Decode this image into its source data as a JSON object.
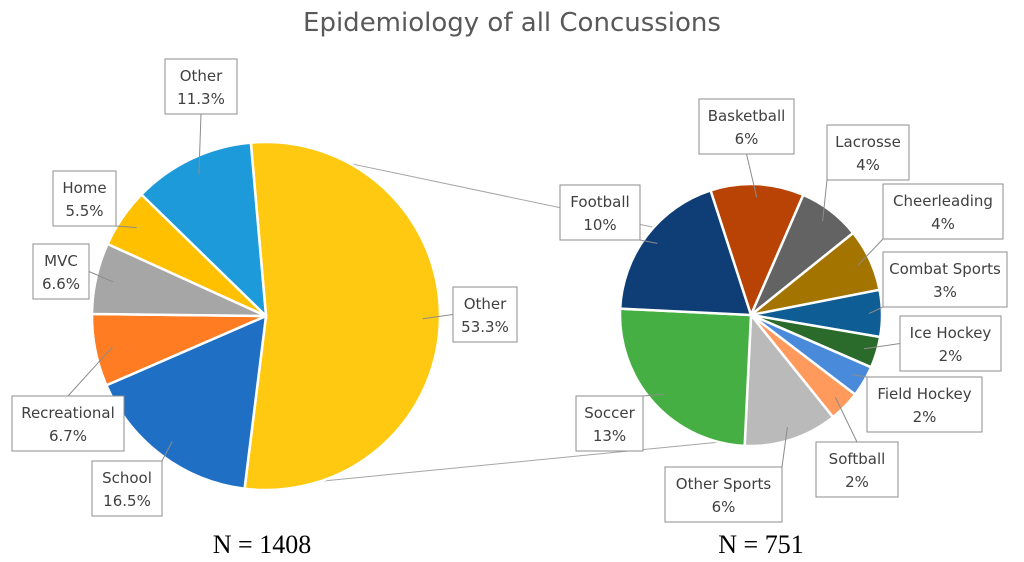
{
  "chart_data": [
    {
      "type": "pie",
      "title": "Epidemiology of all Concussions",
      "n_label": "N = 1408",
      "slices": [
        {
          "label": "Other",
          "value": 53.3,
          "value_label": "53.3%",
          "color": "#FFC811"
        },
        {
          "label": "School",
          "value": 16.5,
          "value_label": "16.5%",
          "color": "#1F6FC5"
        },
        {
          "label": "Recreational",
          "value": 6.7,
          "value_label": "6.7%",
          "color": "#FF7C22"
        },
        {
          "label": "MVC",
          "value": 6.6,
          "value_label": "6.6%",
          "color": "#A6A6A6"
        },
        {
          "label": "Home",
          "value": 5.5,
          "value_label": "5.5%",
          "color": "#FFC000"
        },
        {
          "label": "Other",
          "value": 11.3,
          "value_label": "11.3%",
          "color": "#1C9AD9"
        }
      ]
    },
    {
      "type": "pie",
      "n_label": "N = 751",
      "slices": [
        {
          "label": "Basketball",
          "value": 6,
          "value_label": "6%",
          "color": "#B84304"
        },
        {
          "label": "Lacrosse",
          "value": 4,
          "value_label": "4%",
          "color": "#636363"
        },
        {
          "label": "Cheerleading",
          "value": 4,
          "value_label": "4%",
          "color": "#A47400"
        },
        {
          "label": "Combat Sports",
          "value": 3,
          "value_label": "3%",
          "color": "#0E5D94"
        },
        {
          "label": "Ice Hockey",
          "value": 2,
          "value_label": "2%",
          "color": "#2A6A2B"
        },
        {
          "label": "Field Hockey",
          "value": 2,
          "value_label": "2%",
          "color": "#4A8ADB"
        },
        {
          "label": "Softball",
          "value": 2,
          "value_label": "2%",
          "color": "#FF9A5C"
        },
        {
          "label": "Other Sports",
          "value": 6,
          "value_label": "6%",
          "color": "#BABABA"
        },
        {
          "label": "Soccer",
          "value": 13,
          "value_label": "13%",
          "color": "#46AF43"
        },
        {
          "label": "Football",
          "value": 10,
          "value_label": "10%",
          "color": "#0F3E77"
        }
      ]
    }
  ]
}
